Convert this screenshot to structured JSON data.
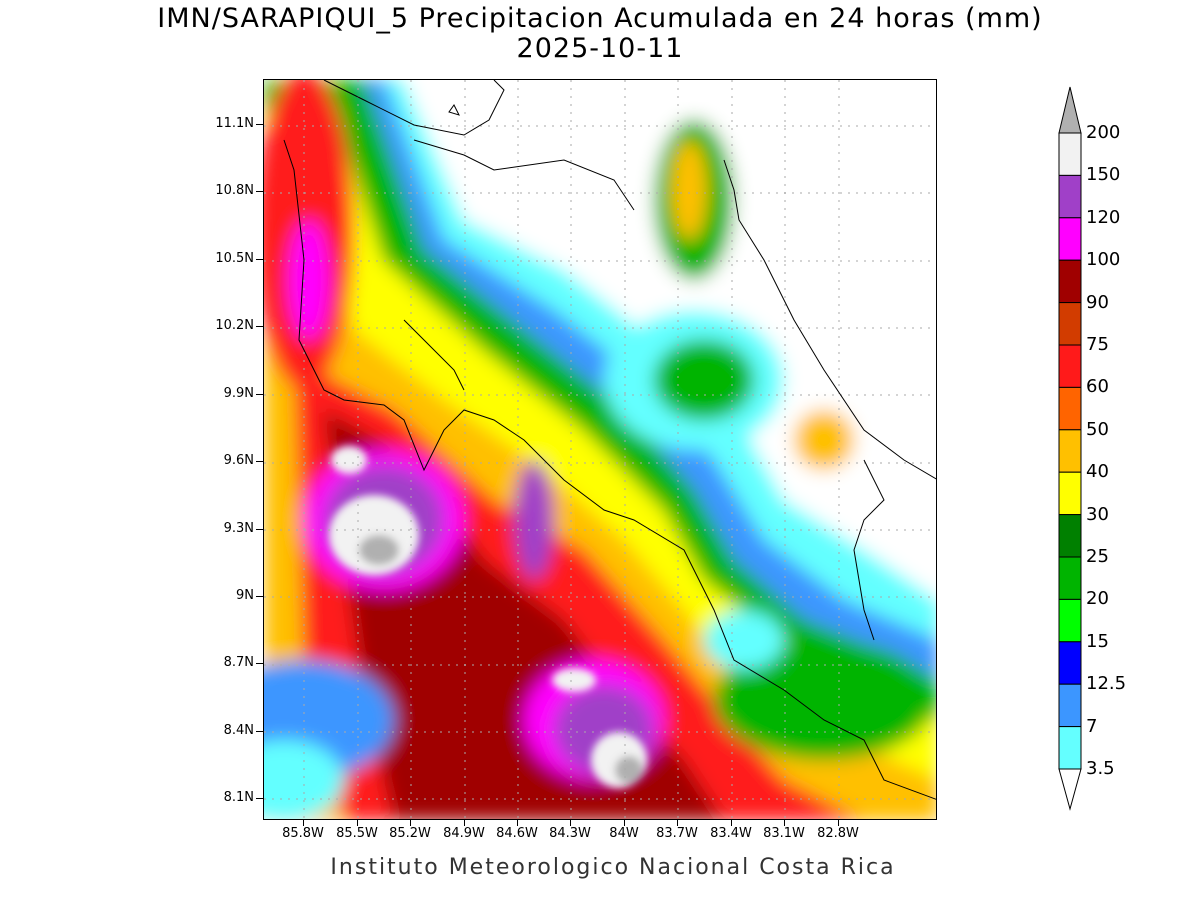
{
  "map": {
    "title": "IMN/SARAPIQUI_5 Precipitacion Acumulada en 24 horas (mm)",
    "date": "2025-10-11",
    "footer": "Instituto Meteorologico Nacional Costa Rica",
    "lat_ticks": [
      "11.1N",
      "10.8N",
      "10.5N",
      "10.2N",
      "9.9N",
      "9.6N",
      "9.3N",
      "9N",
      "8.7N",
      "8.4N",
      "8.1N"
    ],
    "lon_ticks": [
      "85.8W",
      "85.5W",
      "85.2W",
      "84.9W",
      "84.6W",
      "84.3W",
      "84W",
      "83.7W",
      "83.4W",
      "83.1W",
      "82.8W"
    ],
    "legend": {
      "levels": [
        "200",
        "150",
        "120",
        "100",
        "90",
        "75",
        "60",
        "50",
        "40",
        "30",
        "25",
        "20",
        "15",
        "12.5",
        "7",
        "3.5"
      ],
      "colors": [
        "#f2f2f2",
        "#a040c8",
        "#ff00ff",
        "#a00000",
        "#d23c00",
        "#ff1a1a",
        "#ff6400",
        "#ffc000",
        "#ffff00",
        "#008000",
        "#00b400",
        "#00ff00",
        "#0000ff",
        "#3c96ff",
        "#64ffff"
      ],
      "over_color": "#b0b0b0",
      "under_color": "#ffffff"
    }
  }
}
